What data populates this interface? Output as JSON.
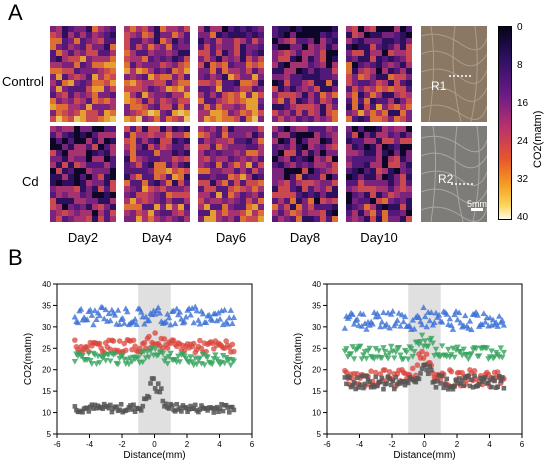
{
  "panels": {
    "a": "A",
    "b": "B"
  },
  "row_labels": [
    "Control",
    "Cd"
  ],
  "day_labels": [
    "Day2",
    "Day4",
    "Day6",
    "Day8",
    "Day10"
  ],
  "regions": [
    "R1",
    "R2"
  ],
  "scale_bar": "5mm",
  "colorbar": {
    "title": "CO2(matm)",
    "ticks": [
      "0",
      "8",
      "16",
      "24",
      "32",
      "40"
    ]
  },
  "chart_data": [
    {
      "type": "scatter",
      "title": "",
      "xlabel": "Distance(mm)",
      "ylabel": "CO2(matm)",
      "xlim": [
        -6,
        6
      ],
      "ylim": [
        5,
        40
      ],
      "x_ticks": [
        "-6",
        "-4",
        "-2",
        "0",
        "2",
        "4",
        "6"
      ],
      "y_ticks": [
        "5",
        "10",
        "15",
        "20",
        "25",
        "30",
        "35",
        "40"
      ],
      "shaded_x": [
        -1,
        1
      ],
      "series": [
        {
          "marker": "triangle-up",
          "color": "#3b6fd6",
          "mean": 32.5,
          "spread": 2.2,
          "peak": 0
        },
        {
          "marker": "circle",
          "color": "#d9443a",
          "mean": 25.5,
          "spread": 1.5,
          "peak": 1.5
        },
        {
          "marker": "triangle-down",
          "color": "#35a35d",
          "mean": 22.5,
          "spread": 1.4,
          "peak": 2.5
        },
        {
          "marker": "square",
          "color": "#555555",
          "mean": 11.0,
          "spread": 1.0,
          "peak": 7
        }
      ]
    },
    {
      "type": "scatter",
      "title": "",
      "xlabel": "Distance(mm)",
      "ylabel": "CO2(matm)",
      "xlim": [
        -6,
        6
      ],
      "ylim": [
        5,
        40
      ],
      "x_ticks": [
        "-6",
        "-4",
        "-2",
        "0",
        "2",
        "4",
        "6"
      ],
      "y_ticks": [
        "5",
        "10",
        "15",
        "20",
        "25",
        "30",
        "35",
        "40"
      ],
      "shaded_x": [
        -1,
        1
      ],
      "series": [
        {
          "marker": "triangle-up",
          "color": "#3b6fd6",
          "mean": 31.5,
          "spread": 2.2,
          "peak": 1
        },
        {
          "marker": "triangle-down",
          "color": "#35a35d",
          "mean": 24.0,
          "spread": 1.6,
          "peak": 4
        },
        {
          "marker": "circle",
          "color": "#d9443a",
          "mean": 18.0,
          "spread": 2.0,
          "peak": 7
        },
        {
          "marker": "square",
          "color": "#555555",
          "mean": 17.0,
          "spread": 1.6,
          "peak": 4
        }
      ]
    }
  ]
}
